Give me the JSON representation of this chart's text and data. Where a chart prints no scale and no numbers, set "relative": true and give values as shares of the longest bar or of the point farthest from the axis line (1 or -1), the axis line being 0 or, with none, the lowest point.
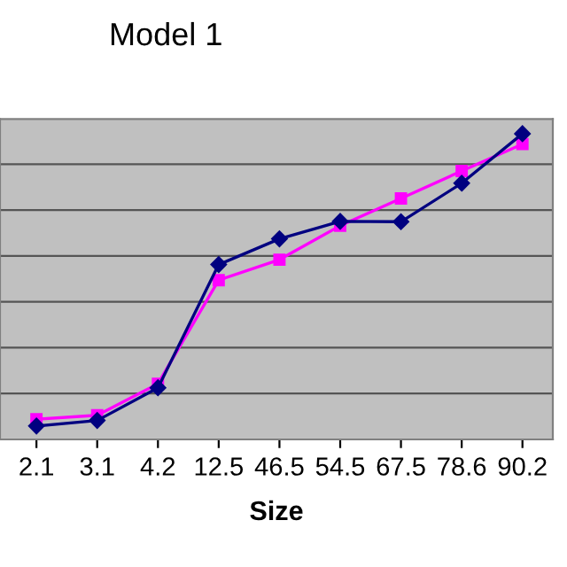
{
  "chart_data": {
    "type": "line",
    "title": "Model 1",
    "xlabel": "Size",
    "relative": true,
    "grid": "y",
    "legend": false,
    "categories": [
      "2.1",
      "3.1",
      "4.2",
      "12.5",
      "46.5",
      "54.5",
      "67.5",
      "78.6",
      "90.2"
    ],
    "series": [
      {
        "color": "#000080",
        "marker": "diamond",
        "values": [
          0.044,
          0.062,
          0.169,
          0.572,
          0.656,
          0.713,
          0.712,
          0.838,
          1.0
        ]
      },
      {
        "color": "#ff00ff",
        "marker": "square",
        "values": [
          0.066,
          0.079,
          0.182,
          0.521,
          0.588,
          0.699,
          0.788,
          0.878,
          0.966
        ]
      }
    ]
  }
}
